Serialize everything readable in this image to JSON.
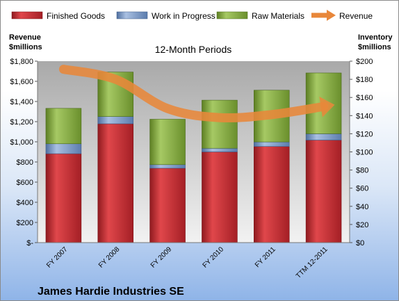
{
  "company_name": "James Hardie Industries SE",
  "chart_data": {
    "type": "bar",
    "stacked": true,
    "subtitle": "12-Month Periods",
    "categories": [
      "FY 2007",
      "FY 2008",
      "FY 2009",
      "FY 2010",
      "FY 2011",
      "TTM 12-2011"
    ],
    "series": [
      {
        "name": "Finished Goods",
        "axis": "right",
        "color": "#c0272d",
        "values": [
          98,
          131,
          82,
          100,
          106,
          113
        ]
      },
      {
        "name": "Work in Progress",
        "axis": "right",
        "color": "#6e8fbf",
        "values": [
          11,
          8,
          4,
          4,
          5,
          7
        ]
      },
      {
        "name": "Raw Materials",
        "axis": "right",
        "color": "#7ea23a",
        "values": [
          39,
          49,
          50,
          53,
          57,
          67
        ]
      },
      {
        "name": "Revenue",
        "axis": "left",
        "type": "line",
        "color": "#e8873a",
        "values": [
          1720,
          1620,
          1330,
          1240,
          1270,
          1350
        ]
      }
    ],
    "left_axis": {
      "title_line1": "Revenue",
      "title_line2": "$millions",
      "min": 0,
      "max": 1800,
      "step": 200,
      "tick_labels": [
        "$-",
        "$200",
        "$400",
        "$600",
        "$800",
        "$1,000",
        "$1,200",
        "$1,400",
        "$1,600",
        "$1,800"
      ]
    },
    "right_axis": {
      "title_line1": "Inventory",
      "title_line2": "$millions",
      "min": 0,
      "max": 200,
      "step": 20,
      "tick_labels": [
        "$0",
        "$20",
        "$40",
        "$60",
        "$80",
        "$100",
        "$120",
        "$140",
        "$160",
        "$180",
        "$200"
      ]
    },
    "legend_position": "top",
    "grid": false
  }
}
